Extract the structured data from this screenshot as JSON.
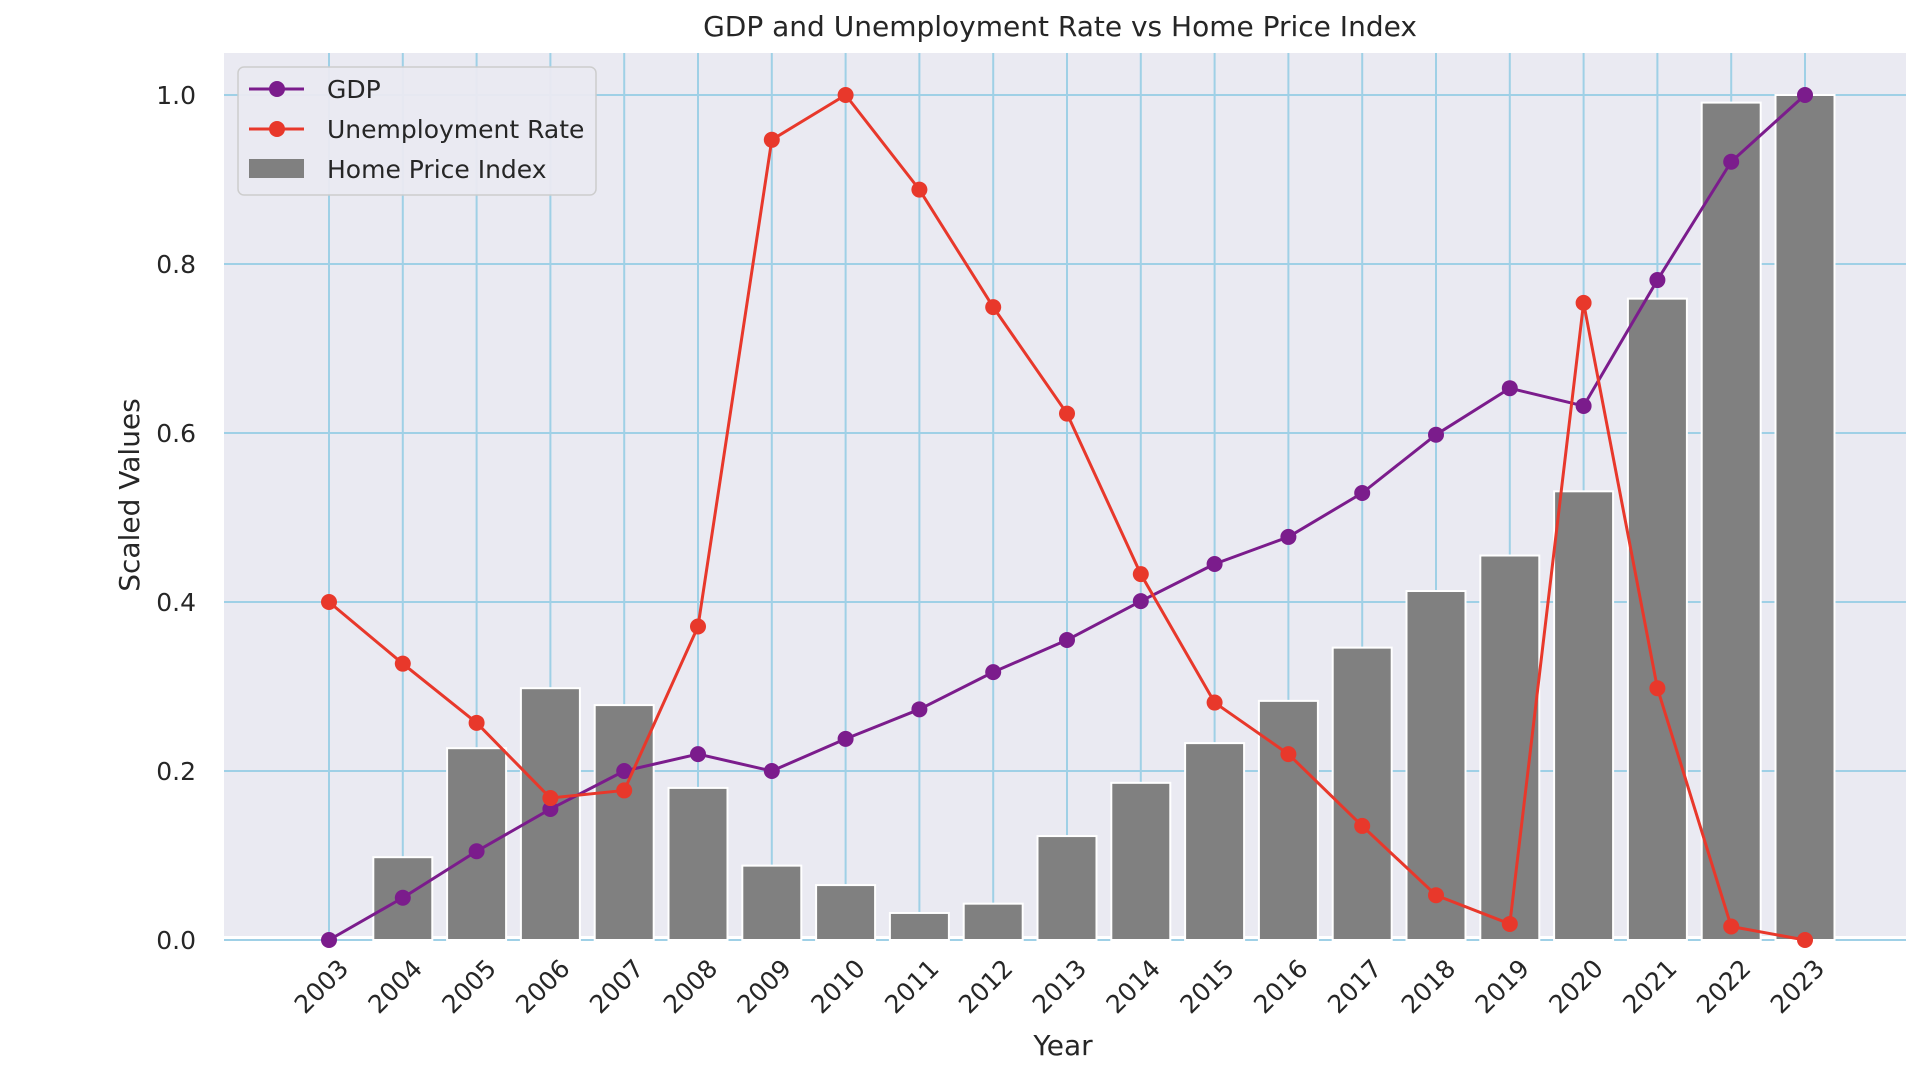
{
  "chart_data": {
    "type": "bar",
    "title": "GDP and Unemployment Rate vs Home Price Index",
    "xlabel": "Year",
    "ylabel": "Scaled Values",
    "ylim": [
      0,
      1.05
    ],
    "yticks": [
      "0.0",
      "0.2",
      "0.4",
      "0.6",
      "0.8",
      "1.0"
    ],
    "grid": true,
    "legend_position": "top-left",
    "categories": [
      "2003",
      "2004",
      "2005",
      "2006",
      "2007",
      "2008",
      "2009",
      "2010",
      "2011",
      "2012",
      "2013",
      "2014",
      "2015",
      "2016",
      "2017",
      "2018",
      "2019",
      "2020",
      "2021",
      "2022",
      "2023"
    ],
    "series": [
      {
        "name": "GDP",
        "type": "line",
        "color": "#7b1c8c",
        "values": [
          0.0,
          0.05,
          0.105,
          0.155,
          0.2,
          0.22,
          0.2,
          0.238,
          0.273,
          0.317,
          0.355,
          0.401,
          0.445,
          0.477,
          0.529,
          0.598,
          0.653,
          0.632,
          0.781,
          0.921,
          1.0
        ]
      },
      {
        "name": "Unemployment Rate",
        "type": "line",
        "color": "#e8382b",
        "values": [
          0.4,
          0.327,
          0.257,
          0.168,
          0.177,
          0.371,
          0.947,
          1.0,
          0.888,
          0.749,
          0.623,
          0.433,
          0.281,
          0.22,
          0.135,
          0.053,
          0.019,
          0.754,
          0.298,
          0.016,
          0.0
        ]
      },
      {
        "name": "Home Price Index",
        "type": "bar",
        "color": "#808080",
        "values": [
          0.0,
          0.098,
          0.227,
          0.298,
          0.278,
          0.18,
          0.088,
          0.065,
          0.032,
          0.043,
          0.123,
          0.186,
          0.233,
          0.283,
          0.346,
          0.413,
          0.455,
          0.531,
          0.759,
          0.991,
          1.0
        ]
      }
    ]
  }
}
